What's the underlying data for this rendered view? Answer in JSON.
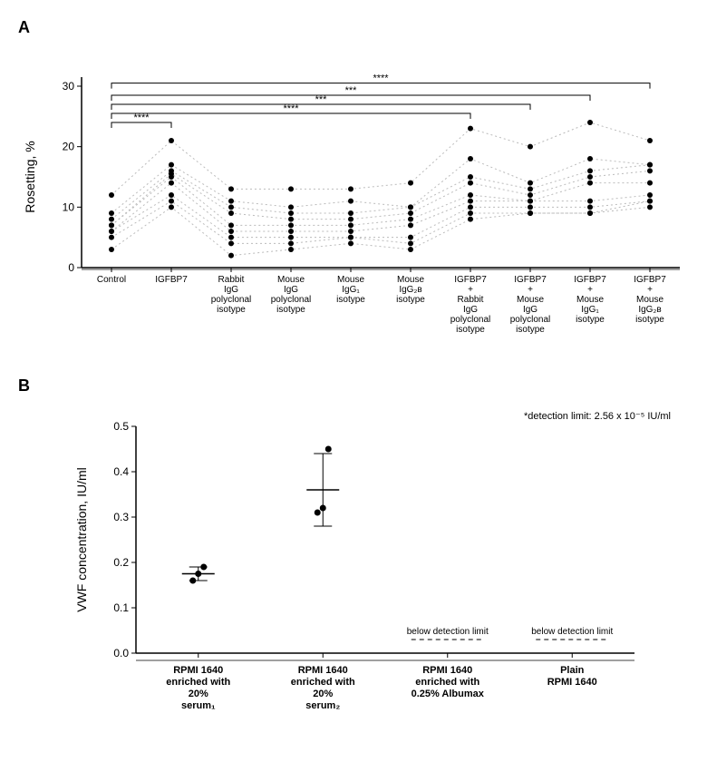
{
  "panelA": {
    "label": "A",
    "type": "scatter-line",
    "ylabel": "Rosetting, %",
    "ylim": [
      0,
      30
    ],
    "yticks": [
      0,
      10,
      20,
      30
    ],
    "categories": [
      "Control",
      "IGFBP7",
      "Rabbit\nIgG\npolyclonal\nisotype",
      "Mouse\nIgG\npolyclonal\nisotype",
      "Mouse\nIgG₁\nisotype",
      "Mouse\nIgG₂в\nisotype",
      "IGFBP7\n+\nRabbit\nIgG\npolyclonal\nisotype",
      "IGFBP7\n+\nMouse\nIgG\npolyclonal\nisotype",
      "IGFBP7\n+\nMouse\nIgG₁\nisotype",
      "IGFBP7\n+\nMouse\nIgG₂в\nisotype"
    ],
    "series": [
      [
        12,
        21,
        13,
        13,
        13,
        14,
        23,
        20,
        24,
        21
      ],
      [
        9,
        17,
        11,
        10,
        11,
        10,
        18,
        14,
        18,
        17
      ],
      [
        8,
        16,
        10,
        9,
        9,
        10,
        15,
        13,
        16,
        17
      ],
      [
        7,
        15.5,
        9,
        8,
        8,
        9,
        14,
        12,
        15,
        16
      ],
      [
        7,
        15,
        7,
        7,
        7,
        8,
        12,
        11,
        14,
        14
      ],
      [
        6,
        14,
        6,
        6,
        6,
        7,
        11,
        11,
        11,
        12
      ],
      [
        6,
        12,
        5,
        5,
        5,
        5,
        10,
        10,
        10,
        11
      ],
      [
        5,
        11,
        4,
        4,
        5,
        4,
        9,
        9,
        9,
        11
      ],
      [
        3,
        10,
        2,
        3,
        4,
        3,
        8,
        9,
        9,
        10
      ]
    ],
    "sig_brackets": [
      {
        "from": 0,
        "to": 1,
        "label": "****",
        "y": 24
      },
      {
        "from": 0,
        "to": 6,
        "label": "****",
        "y": 25.5
      },
      {
        "from": 0,
        "to": 7,
        "label": "***",
        "y": 27
      },
      {
        "from": 0,
        "to": 8,
        "label": "***",
        "y": 28.5
      },
      {
        "from": 0,
        "to": 9,
        "label": "****",
        "y": 30.5
      }
    ],
    "colors": {
      "point": "#000000",
      "line": "#bbbbbb",
      "axis": "#000000"
    },
    "point_radius": 3,
    "line_dash": "2,3"
  },
  "panelB": {
    "label": "B",
    "type": "scatter-errorbar",
    "ylabel": "VWF concentration, IU/ml",
    "ylim": [
      0.0,
      0.5
    ],
    "yticks": [
      0.0,
      0.1,
      0.2,
      0.3,
      0.4,
      0.5
    ],
    "note": "*detection limit: 2.56 x 10⁻⁵ IU/ml",
    "categories": [
      "RPMI 1640\nenriched with\n20%\nserum₁",
      "RPMI 1640\nenriched with\n20%\nserum₂",
      "RPMI 1640\nenriched with\n0.25% Albumax",
      "Plain\nRPMI 1640"
    ],
    "groups": [
      {
        "points": [
          0.16,
          0.175,
          0.19
        ],
        "mean": 0.175,
        "err": 0.015,
        "below_limit": false
      },
      {
        "points": [
          0.31,
          0.32,
          0.45
        ],
        "mean": 0.36,
        "err": 0.08,
        "below_limit": false
      },
      {
        "below_limit": true
      },
      {
        "below_limit": true
      }
    ],
    "below_text": "below detection limit",
    "below_y": 0.03,
    "colors": {
      "point": "#000000",
      "line": "#000000",
      "axis": "#000000",
      "dash": "#555555"
    },
    "point_radius": 3.5
  }
}
